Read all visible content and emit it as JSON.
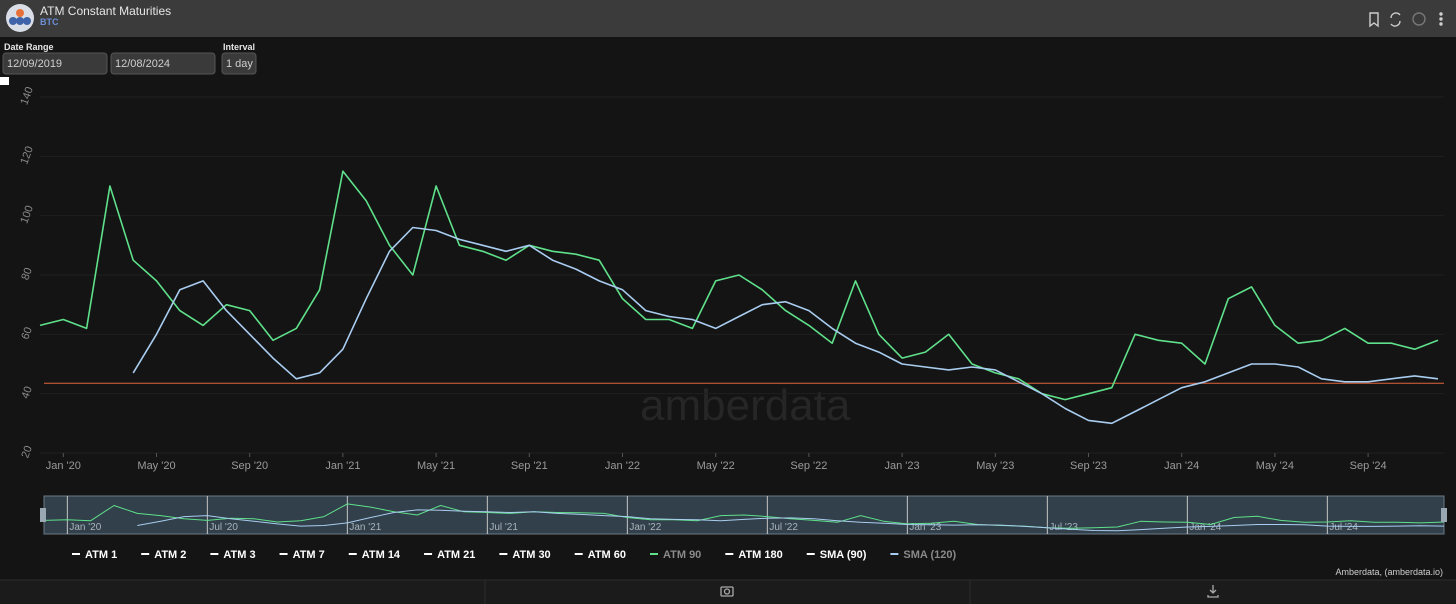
{
  "header": {
    "title": "ATM Constant Maturities",
    "subtitle": "BTC"
  },
  "controls": {
    "date_range_label": "Date Range",
    "start_date": "12/09/2019",
    "end_date": "12/08/2024",
    "interval_label": "Interval",
    "interval": "1 day"
  },
  "watermark": "amberdata",
  "credit": "Amberdata, (amberdata.io)",
  "chart_data": {
    "type": "line",
    "x": [
      "2019-12",
      "2020-01",
      "2020-02",
      "2020-03",
      "2020-04",
      "2020-05",
      "2020-06",
      "2020-07",
      "2020-08",
      "2020-09",
      "2020-10",
      "2020-11",
      "2020-12",
      "2021-01",
      "2021-02",
      "2021-03",
      "2021-04",
      "2021-05",
      "2021-06",
      "2021-07",
      "2021-08",
      "2021-09",
      "2021-10",
      "2021-11",
      "2021-12",
      "2022-01",
      "2022-02",
      "2022-03",
      "2022-04",
      "2022-05",
      "2022-06",
      "2022-07",
      "2022-08",
      "2022-09",
      "2022-10",
      "2022-11",
      "2022-12",
      "2023-01",
      "2023-02",
      "2023-03",
      "2023-04",
      "2023-05",
      "2023-06",
      "2023-07",
      "2023-08",
      "2023-09",
      "2023-10",
      "2023-11",
      "2023-12",
      "2024-01",
      "2024-02",
      "2024-03",
      "2024-04",
      "2024-05",
      "2024-06",
      "2024-07",
      "2024-08",
      "2024-09",
      "2024-10",
      "2024-11",
      "2024-12"
    ],
    "series": [
      {
        "name": "ATM 90",
        "color": "#5fe08a",
        "values": [
          63,
          65,
          62,
          110,
          85,
          78,
          68,
          63,
          70,
          68,
          58,
          62,
          75,
          115,
          105,
          90,
          80,
          110,
          90,
          88,
          85,
          90,
          88,
          87,
          85,
          72,
          65,
          65,
          62,
          78,
          80,
          75,
          68,
          63,
          57,
          78,
          60,
          52,
          54,
          60,
          50,
          47,
          45,
          40,
          38,
          40,
          42,
          60,
          58,
          57,
          50,
          72,
          76,
          63,
          57,
          58,
          62,
          57,
          57,
          55,
          58
        ]
      },
      {
        "name": "SMA (120)",
        "color": "#a9cdf0",
        "values": [
          null,
          null,
          null,
          null,
          47,
          60,
          75,
          78,
          68,
          60,
          52,
          45,
          47,
          55,
          72,
          88,
          96,
          95,
          92,
          90,
          88,
          90,
          85,
          82,
          78,
          75,
          68,
          66,
          65,
          62,
          66,
          70,
          71,
          68,
          62,
          57,
          54,
          50,
          49,
          48,
          49,
          48,
          44,
          40,
          35,
          31,
          30,
          34,
          38,
          42,
          44,
          47,
          50,
          50,
          49,
          45,
          44,
          44,
          45,
          46,
          45
        ]
      }
    ],
    "hidden_series": [
      "ATM 1",
      "ATM 2",
      "ATM 3",
      "ATM 7",
      "ATM 14",
      "ATM 21",
      "ATM 30",
      "ATM 60",
      "ATM 180",
      "SMA (90)"
    ],
    "reference_line": {
      "value": 43.5,
      "color": "#e0643c"
    },
    "xlim": [
      "2019-12",
      "2024-12"
    ],
    "xticks": [
      {
        "value": "2020-01",
        "label": "Jan '20"
      },
      {
        "value": "2020-05",
        "label": "May '20"
      },
      {
        "value": "2020-09",
        "label": "Sep '20"
      },
      {
        "value": "2021-01",
        "label": "Jan '21"
      },
      {
        "value": "2021-05",
        "label": "May '21"
      },
      {
        "value": "2021-09",
        "label": "Sep '21"
      },
      {
        "value": "2022-01",
        "label": "Jan '22"
      },
      {
        "value": "2022-05",
        "label": "May '22"
      },
      {
        "value": "2022-09",
        "label": "Sep '22"
      },
      {
        "value": "2023-01",
        "label": "Jan '23"
      },
      {
        "value": "2023-05",
        "label": "May '23"
      },
      {
        "value": "2023-09",
        "label": "Sep '23"
      },
      {
        "value": "2024-01",
        "label": "Jan '24"
      },
      {
        "value": "2024-05",
        "label": "May '24"
      },
      {
        "value": "2024-09",
        "label": "Sep '24"
      }
    ],
    "slider_ticks": [
      {
        "value": "2020-01",
        "label": "Jan '20"
      },
      {
        "value": "2020-07",
        "label": "Jul '20"
      },
      {
        "value": "2021-01",
        "label": "Jan '21"
      },
      {
        "value": "2021-07",
        "label": "Jul '21"
      },
      {
        "value": "2022-01",
        "label": "Jan '22"
      },
      {
        "value": "2022-07",
        "label": "Jul '22"
      },
      {
        "value": "2023-01",
        "label": "Jan '23"
      },
      {
        "value": "2023-07",
        "label": "Jul '23"
      },
      {
        "value": "2024-01",
        "label": "Jan '24"
      },
      {
        "value": "2024-07",
        "label": "Jul '24"
      }
    ],
    "ylim": [
      20,
      140
    ],
    "yticks": [
      20,
      40,
      60,
      80,
      100,
      120,
      140
    ]
  }
}
